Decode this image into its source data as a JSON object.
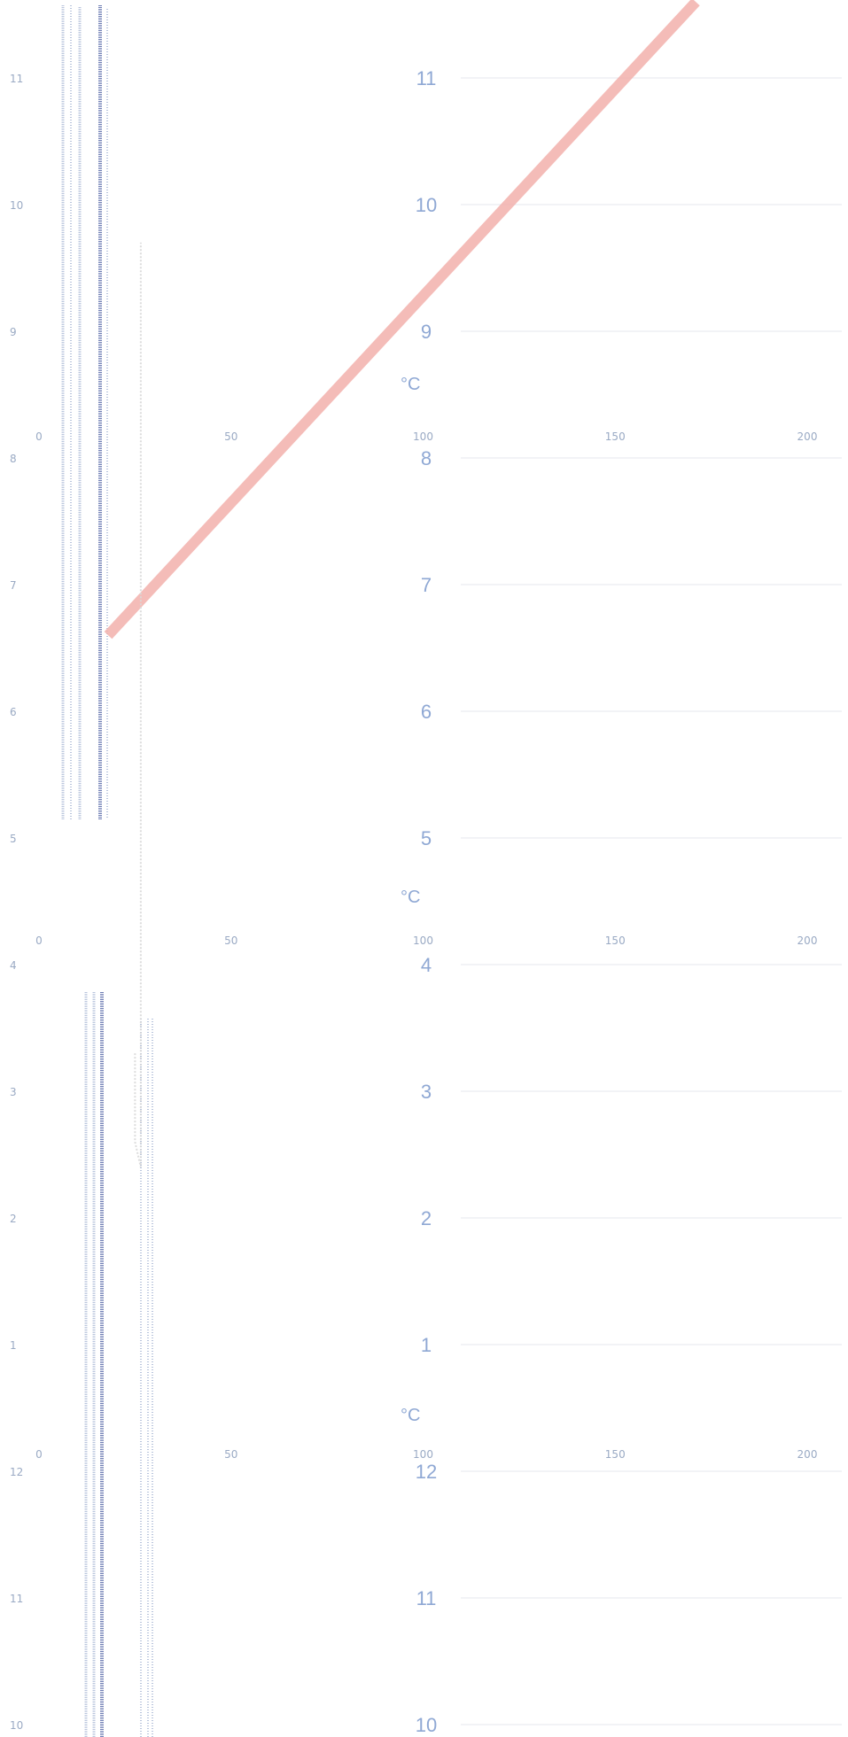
{
  "chart_data": {
    "type": "line",
    "unit_label": "°C",
    "temperature_axis": {
      "ticks": [
        "0",
        "50",
        "100",
        "150",
        "200"
      ],
      "range": [
        0,
        220
      ]
    },
    "vertical_scale": {
      "left_labels": [
        "11",
        "10",
        "9",
        "8",
        "7",
        "6",
        "5",
        "4",
        "3",
        "2",
        "1",
        "12",
        "11",
        "10"
      ],
      "center_labels": [
        "11",
        "10",
        "9",
        "8",
        "7",
        "6",
        "5",
        "4",
        "3",
        "2",
        "1",
        "12",
        "11",
        "10"
      ]
    },
    "series": [
      {
        "color": "#f2b0ac",
        "x": [
          18,
          171
        ],
        "y": [
          6.6,
          11.6
        ]
      },
      {
        "color": "#d8d8d8",
        "x": [
          25,
          25,
          26.5,
          26.5
        ],
        "y": [
          3.3,
          2.6,
          2.4,
          9.7
        ]
      }
    ],
    "grid": true
  },
  "colors": {
    "trace_dark": "#6d7cb3",
    "trace_light": "#b8c4dc",
    "number_blue": "#8fa8d4",
    "axis_grey": "#9aaac4",
    "hairline": "#e4e7ee"
  }
}
